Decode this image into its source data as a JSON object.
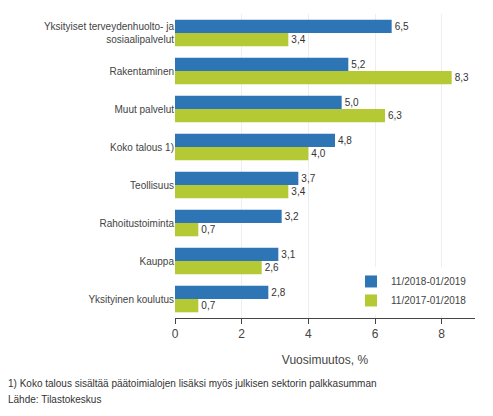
{
  "chart_data": {
    "type": "bar",
    "orientation": "horizontal",
    "categories": [
      "Yksityiset terveydenhuolto- ja\nsosiaalipalvelut",
      "Rakentaminen",
      "Muut palvelut",
      "Koko talous 1)",
      "Teollisuus",
      "Rahoitustoiminta",
      "Kauppa",
      "Yksityinen koulutus"
    ],
    "series": [
      {
        "name": "11/2018-01/2019",
        "color": "#2E75B6",
        "values": [
          6.5,
          5.2,
          5.0,
          4.8,
          3.7,
          3.2,
          3.1,
          2.8
        ],
        "value_labels": [
          "6,5",
          "5,2",
          "5,0",
          "4,8",
          "3,7",
          "3,2",
          "3,1",
          "2,8"
        ]
      },
      {
        "name": "11/2017-01/2018",
        "color": "#B5C934",
        "values": [
          3.4,
          8.3,
          6.3,
          4.0,
          3.4,
          0.7,
          2.6,
          0.7
        ],
        "value_labels": [
          "3,4",
          "8,3",
          "6,3",
          "4,0",
          "3,4",
          "0,7",
          "2,6",
          "0,7"
        ]
      }
    ],
    "xlabel": "Vuosimuutos, %",
    "xlim": [
      0,
      9
    ],
    "xticks": [
      0,
      2,
      4,
      6,
      8
    ],
    "grid": true,
    "legend": "lower right",
    "data_labels": true,
    "annotations": [
      "1) Koko talous sisältää päätoimialojen lisäksi myös julkisen sektorin palkkasumman",
      "Lähde: Tilastokeskus"
    ]
  }
}
